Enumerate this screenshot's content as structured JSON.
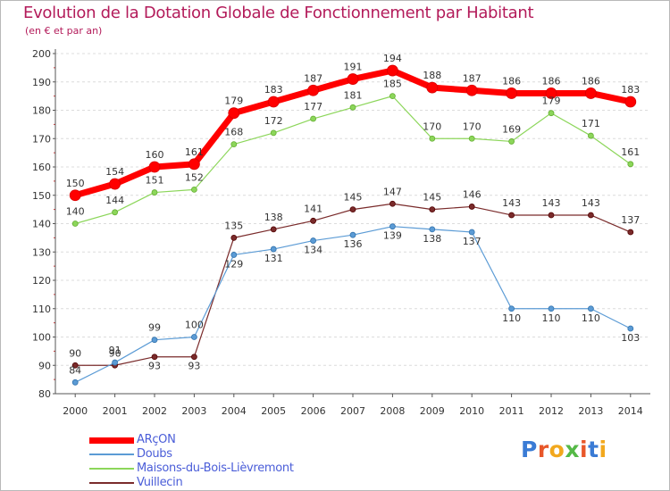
{
  "header": {
    "title": "Evolution de la Dotation Globale de Fonctionnement par Habitant",
    "subtitle": "(en € et par an)"
  },
  "logo": {
    "text": "Proxiti",
    "colors": [
      "#3a7bd5",
      "#e8572a",
      "#f2a81d",
      "#55b947",
      "#e8572a",
      "#3a7bd5",
      "#f2a81d"
    ]
  },
  "chart_data": {
    "type": "line",
    "x": [
      "2000",
      "2001",
      "2002",
      "2003",
      "2004",
      "2005",
      "2006",
      "2007",
      "2008",
      "2009",
      "2010",
      "2011",
      "2012",
      "2013",
      "2014"
    ],
    "ylim": [
      80,
      200
    ],
    "yticks": [
      80,
      90,
      100,
      110,
      120,
      130,
      140,
      150,
      160,
      170,
      180,
      190,
      200
    ],
    "grid": true,
    "legend_position": "bottom-left",
    "series": [
      {
        "name": "ARçON",
        "color": "#ff0000",
        "values": [
          150,
          154,
          160,
          161,
          179,
          183,
          187,
          191,
          194,
          188,
          187,
          186,
          186,
          186,
          183
        ]
      },
      {
        "name": "Doubs",
        "color": "#5b9bd5",
        "values": [
          84,
          91,
          99,
          100,
          129,
          131,
          134,
          136,
          139,
          138,
          137,
          110,
          110,
          110,
          103
        ]
      },
      {
        "name": "Maisons-du-Bois-Lièvremont",
        "color": "#8cd65a",
        "values": [
          140,
          144,
          151,
          152,
          168,
          172,
          177,
          181,
          185,
          170,
          170,
          169,
          179,
          171,
          161
        ]
      },
      {
        "name": "Vuillecin",
        "color": "#7a2b2b",
        "values": [
          90,
          90,
          93,
          93,
          135,
          138,
          141,
          145,
          147,
          145,
          146,
          143,
          143,
          143,
          137
        ]
      }
    ]
  }
}
